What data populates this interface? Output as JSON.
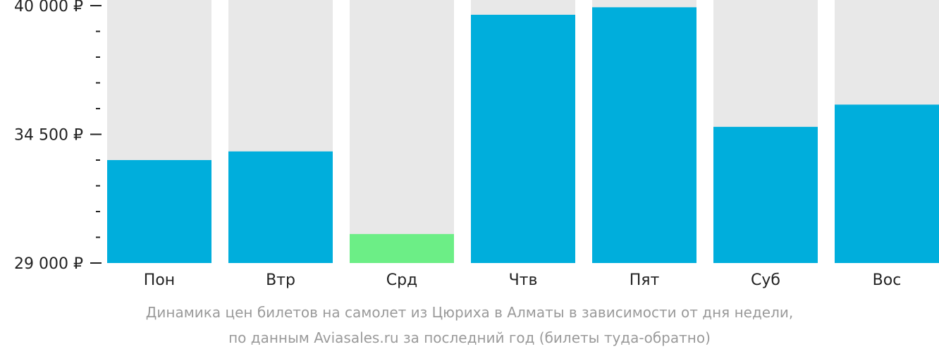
{
  "chart_data": {
    "type": "bar",
    "categories": [
      "Пон",
      "Втр",
      "Срд",
      "Чтв",
      "Пят",
      "Суб",
      "Вос"
    ],
    "values": [
      33400,
      33770,
      30240,
      39610,
      39930,
      34820,
      35770
    ],
    "highlight": [
      "normal",
      "normal",
      "min",
      "normal",
      "normal",
      "normal",
      "normal"
    ],
    "ylim": [
      29000,
      40000
    ],
    "yticks": [
      {
        "value": 40000,
        "label": "40 000 ₽"
      },
      {
        "value": 34500,
        "label": "34 500 ₽"
      },
      {
        "value": 29000,
        "label": "29 000 ₽"
      }
    ],
    "minor_tick_step": 1100,
    "title": "Динамика цен билетов на самолет из Цюриха в Алматы в зависимости от дня недели,",
    "subtitle": "по данным Aviasales.ru за последний год (билеты туда-обратно)",
    "grid": false,
    "legend": "none"
  },
  "colors": {
    "bar": "#00AEDC",
    "bar_min": "#6CEE86",
    "bar_background": "#E8E8E8",
    "axis": "#222222",
    "text": "#222222",
    "caption": "#9A9A9A"
  }
}
